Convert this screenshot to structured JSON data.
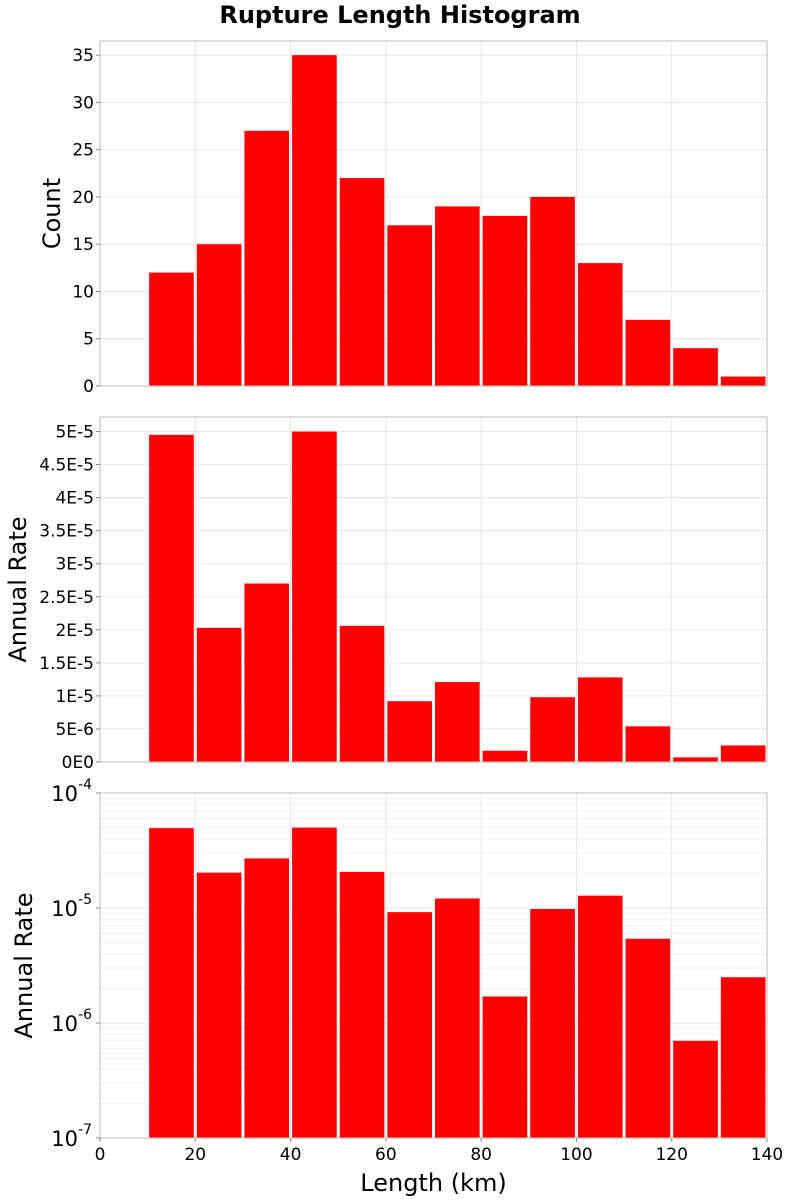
{
  "title": "Rupture Length Histogram",
  "colors": {
    "bar": "#ff0000",
    "bar_edge": "#ffffff",
    "grid": "#e6e6e6",
    "frame": "#bdbdbd"
  },
  "chart_data": [
    {
      "type": "bar",
      "title": "Rupture Length Histogram",
      "xlabel": "",
      "ylabel": "Count",
      "yscale": "linear",
      "xlim": [
        0,
        140
      ],
      "ylim": [
        0,
        36.5
      ],
      "x_ticks": [],
      "y_ticks": [
        0,
        5,
        10,
        15,
        20,
        25,
        30,
        35
      ],
      "y_tick_labels": [
        "0",
        "5",
        "10",
        "15",
        "20",
        "25",
        "30",
        "35"
      ],
      "bin_width": 10,
      "bin_centers": [
        15,
        25,
        35,
        45,
        55,
        65,
        75,
        85,
        95,
        105,
        115,
        125,
        135
      ],
      "values": [
        12,
        15,
        27,
        35,
        22,
        17,
        19,
        18,
        20,
        13,
        7,
        4,
        1
      ],
      "grid": true
    },
    {
      "type": "bar",
      "title": "",
      "xlabel": "",
      "ylabel": "Annual Rate",
      "yscale": "linear",
      "xlim": [
        0,
        140
      ],
      "ylim": [
        0,
        5.22e-05
      ],
      "x_ticks": [],
      "y_ticks": [
        0,
        5e-06,
        1e-05,
        1.5e-05,
        2e-05,
        2.5e-05,
        3e-05,
        3.5e-05,
        4e-05,
        4.5e-05,
        5e-05
      ],
      "y_tick_labels": [
        "0E0",
        "5E-6",
        "1E-5",
        "1.5E-5",
        "2E-5",
        "2.5E-5",
        "3E-5",
        "3.5E-5",
        "4E-5",
        "4.5E-5",
        "5E-5"
      ],
      "bin_width": 10,
      "bin_centers": [
        15,
        25,
        35,
        45,
        55,
        65,
        75,
        85,
        95,
        105,
        115,
        125,
        135
      ],
      "values": [
        4.95e-05,
        2.03e-05,
        2.7e-05,
        5e-05,
        2.06e-05,
        9.2e-06,
        1.21e-05,
        1.7e-06,
        9.8e-06,
        1.28e-05,
        5.4e-06,
        7e-07,
        2.5e-06
      ],
      "grid": true
    },
    {
      "type": "bar",
      "title": "",
      "xlabel": "Length (km)",
      "ylabel": "Annual Rate",
      "yscale": "log",
      "xlim": [
        0,
        140
      ],
      "ylim": [
        1e-07,
        0.0001
      ],
      "x_ticks": [
        0,
        20,
        40,
        60,
        80,
        100,
        120,
        140
      ],
      "x_tick_labels": [
        "0",
        "20",
        "40",
        "60",
        "80",
        "100",
        "120",
        "140"
      ],
      "y_ticks": [
        1e-07,
        1e-06,
        1e-05,
        0.0001
      ],
      "y_tick_bases": [
        "10",
        "10",
        "10",
        "10"
      ],
      "y_tick_exponents": [
        "-7",
        "-6",
        "-5",
        "-4"
      ],
      "bin_width": 10,
      "bin_centers": [
        15,
        25,
        35,
        45,
        55,
        65,
        75,
        85,
        95,
        105,
        115,
        125,
        135
      ],
      "values": [
        4.95e-05,
        2.03e-05,
        2.7e-05,
        5e-05,
        2.06e-05,
        9.2e-06,
        1.21e-05,
        1.7e-06,
        9.8e-06,
        1.28e-05,
        5.4e-06,
        7e-07,
        2.5e-06
      ],
      "grid": true
    }
  ]
}
